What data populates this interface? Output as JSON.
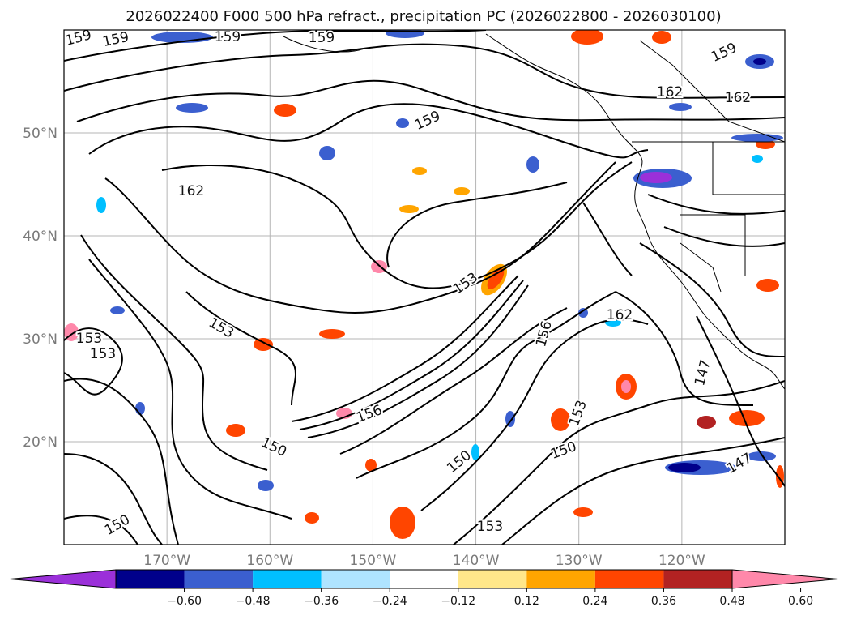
{
  "title": "2026022400 F000 500 hPa refract., precipitation PC (2026022800 - 2026030100)",
  "map": {
    "lon_range": [
      -180,
      -110
    ],
    "lat_range": [
      10,
      60
    ],
    "lat_ticks": [
      {
        "value": 20,
        "label": "20°N"
      },
      {
        "value": 30,
        "label": "30°N"
      },
      {
        "value": 40,
        "label": "40°N"
      },
      {
        "value": 50,
        "label": "50°N"
      }
    ],
    "lon_ticks": [
      {
        "value": -170,
        "label": "170°W"
      },
      {
        "value": -160,
        "label": "160°W"
      },
      {
        "value": -150,
        "label": "150°W"
      },
      {
        "value": -140,
        "label": "140°W"
      },
      {
        "value": -130,
        "label": "130°W"
      },
      {
        "value": -120,
        "label": "120°W"
      }
    ],
    "grid": true,
    "contour_color": "#000000",
    "contour_labels": [
      "159",
      "159",
      "159",
      "159",
      "159",
      "159",
      "162",
      "162",
      "162",
      "153",
      "153",
      "153",
      "153",
      "150",
      "150",
      "150",
      "150",
      "162",
      "147",
      "147",
      "153",
      "153",
      "156",
      "156"
    ]
  },
  "colorbar": {
    "ticks": [
      "−0.60",
      "−0.48",
      "−0.36",
      "−0.24",
      "−0.12",
      "0.12",
      "0.24",
      "0.36",
      "0.48",
      "0.60"
    ],
    "colors": [
      "#9b30d9",
      "#00008b",
      "#3b5fcf",
      "#00bfff",
      "#afe4ff",
      "#ffffff",
      "#ffe78a",
      "#ffa500",
      "#ff4500",
      "#b22222",
      "#ff88aa"
    ]
  }
}
